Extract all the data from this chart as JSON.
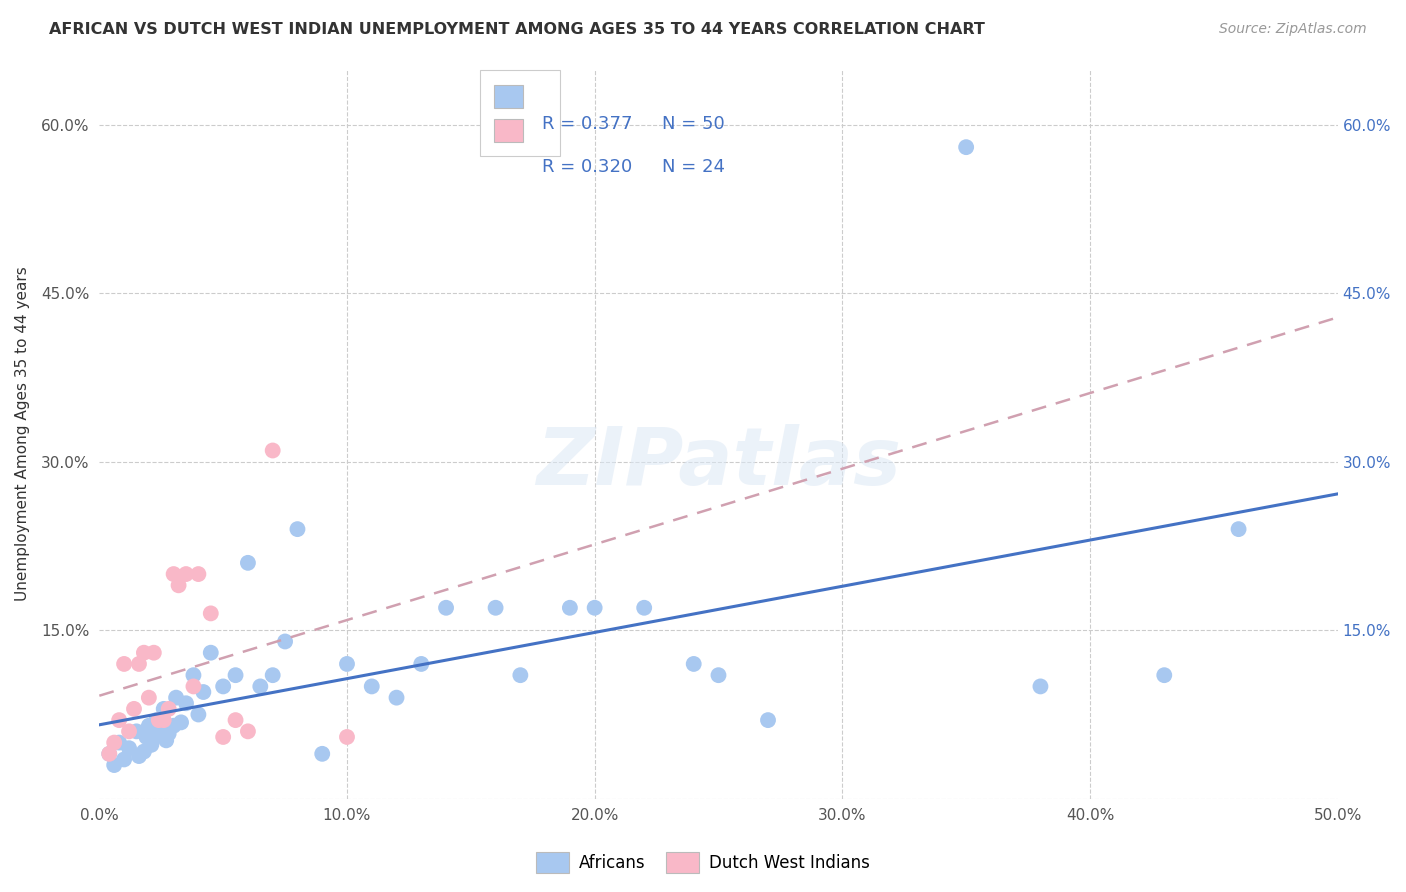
{
  "title": "AFRICAN VS DUTCH WEST INDIAN UNEMPLOYMENT AMONG AGES 35 TO 44 YEARS CORRELATION CHART",
  "source": "Source: ZipAtlas.com",
  "ylabel": "Unemployment Among Ages 35 to 44 years",
  "xlim": [
    0.0,
    0.5
  ],
  "ylim": [
    0.0,
    0.65
  ],
  "xticks": [
    0.0,
    0.1,
    0.2,
    0.3,
    0.4,
    0.5
  ],
  "yticks": [
    0.0,
    0.15,
    0.3,
    0.45,
    0.6
  ],
  "left_ytick_labels": [
    "",
    "15.0%",
    "30.0%",
    "45.0%",
    "60.0%"
  ],
  "xtick_labels": [
    "0.0%",
    "10.0%",
    "20.0%",
    "30.0%",
    "40.0%",
    "50.0%"
  ],
  "right_ytick_labels": [
    "",
    "15.0%",
    "30.0%",
    "45.0%",
    "60.0%"
  ],
  "african_R": "0.377",
  "african_N": "50",
  "dutch_R": "0.320",
  "dutch_N": "24",
  "african_scatter_color": "#a8c8f0",
  "dutch_scatter_color": "#f9b8c8",
  "african_line_color": "#4472c4",
  "dutch_line_color": "#d0a0b0",
  "right_axis_color": "#4472c4",
  "background_color": "#ffffff",
  "grid_color": "#cccccc",
  "watermark": "ZIPatlas",
  "title_color": "#333333",
  "source_color": "#999999",
  "left_tick_color": "#555555",
  "legend_africans_label": "Africans",
  "legend_dutch_label": "Dutch West Indians",
  "africans_x": [
    0.004,
    0.006,
    0.008,
    0.01,
    0.012,
    0.015,
    0.016,
    0.018,
    0.019,
    0.02,
    0.021,
    0.022,
    0.023,
    0.025,
    0.026,
    0.027,
    0.028,
    0.03,
    0.031,
    0.033,
    0.035,
    0.038,
    0.04,
    0.042,
    0.045,
    0.05,
    0.055,
    0.06,
    0.065,
    0.07,
    0.075,
    0.08,
    0.09,
    0.1,
    0.11,
    0.12,
    0.13,
    0.14,
    0.16,
    0.17,
    0.19,
    0.2,
    0.22,
    0.24,
    0.25,
    0.27,
    0.35,
    0.38,
    0.43,
    0.46
  ],
  "africans_y": [
    0.04,
    0.03,
    0.05,
    0.035,
    0.045,
    0.06,
    0.038,
    0.042,
    0.055,
    0.065,
    0.048,
    0.055,
    0.07,
    0.06,
    0.08,
    0.052,
    0.058,
    0.065,
    0.09,
    0.068,
    0.085,
    0.11,
    0.075,
    0.095,
    0.13,
    0.1,
    0.11,
    0.21,
    0.1,
    0.11,
    0.14,
    0.24,
    0.04,
    0.12,
    0.1,
    0.09,
    0.12,
    0.17,
    0.17,
    0.11,
    0.17,
    0.17,
    0.17,
    0.12,
    0.11,
    0.07,
    0.58,
    0.1,
    0.11,
    0.24
  ],
  "dutch_x": [
    0.004,
    0.006,
    0.008,
    0.01,
    0.012,
    0.014,
    0.016,
    0.018,
    0.02,
    0.022,
    0.024,
    0.026,
    0.028,
    0.03,
    0.032,
    0.035,
    0.038,
    0.04,
    0.045,
    0.05,
    0.055,
    0.06,
    0.07,
    0.1
  ],
  "dutch_y": [
    0.04,
    0.05,
    0.07,
    0.12,
    0.06,
    0.08,
    0.12,
    0.13,
    0.09,
    0.13,
    0.07,
    0.07,
    0.08,
    0.2,
    0.19,
    0.2,
    0.1,
    0.2,
    0.165,
    0.055,
    0.07,
    0.06,
    0.31,
    0.055
  ]
}
